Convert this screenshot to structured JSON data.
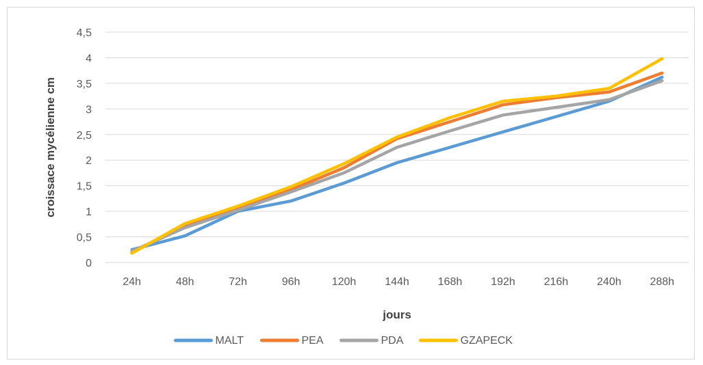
{
  "chart_data": {
    "type": "line",
    "title": "",
    "xlabel": "jours",
    "ylabel": "croissace mycélienne cm",
    "categories": [
      "24h",
      "48h",
      "72h",
      "96h",
      "120h",
      "144h",
      "168h",
      "192h",
      "216h",
      "240h",
      "288h"
    ],
    "ylim": [
      0,
      4.5
    ],
    "yticks": [
      "0",
      "0,5",
      "1",
      "1,5",
      "2",
      "2,5",
      "3",
      "3,5",
      "4",
      "4,5"
    ],
    "grid": true,
    "legend_position": "bottom",
    "series": [
      {
        "name": "MALT",
        "color": "#5b9bd5",
        "values": [
          0.25,
          0.52,
          1.0,
          1.2,
          1.55,
          1.95,
          2.25,
          2.55,
          2.85,
          3.15,
          3.62
        ]
      },
      {
        "name": "PEA",
        "color": "#ed7d31",
        "values": [
          0.2,
          0.72,
          1.05,
          1.42,
          1.85,
          2.42,
          2.75,
          3.08,
          3.22,
          3.33,
          3.7
        ]
      },
      {
        "name": "PDA",
        "color": "#a5a5a5",
        "values": [
          0.22,
          0.68,
          1.02,
          1.38,
          1.75,
          2.25,
          2.57,
          2.88,
          3.03,
          3.18,
          3.55
        ]
      },
      {
        "name": "GZAPECK",
        "color": "#ffc000",
        "values": [
          0.18,
          0.76,
          1.1,
          1.48,
          1.93,
          2.45,
          2.83,
          3.15,
          3.25,
          3.4,
          3.98
        ]
      }
    ]
  }
}
